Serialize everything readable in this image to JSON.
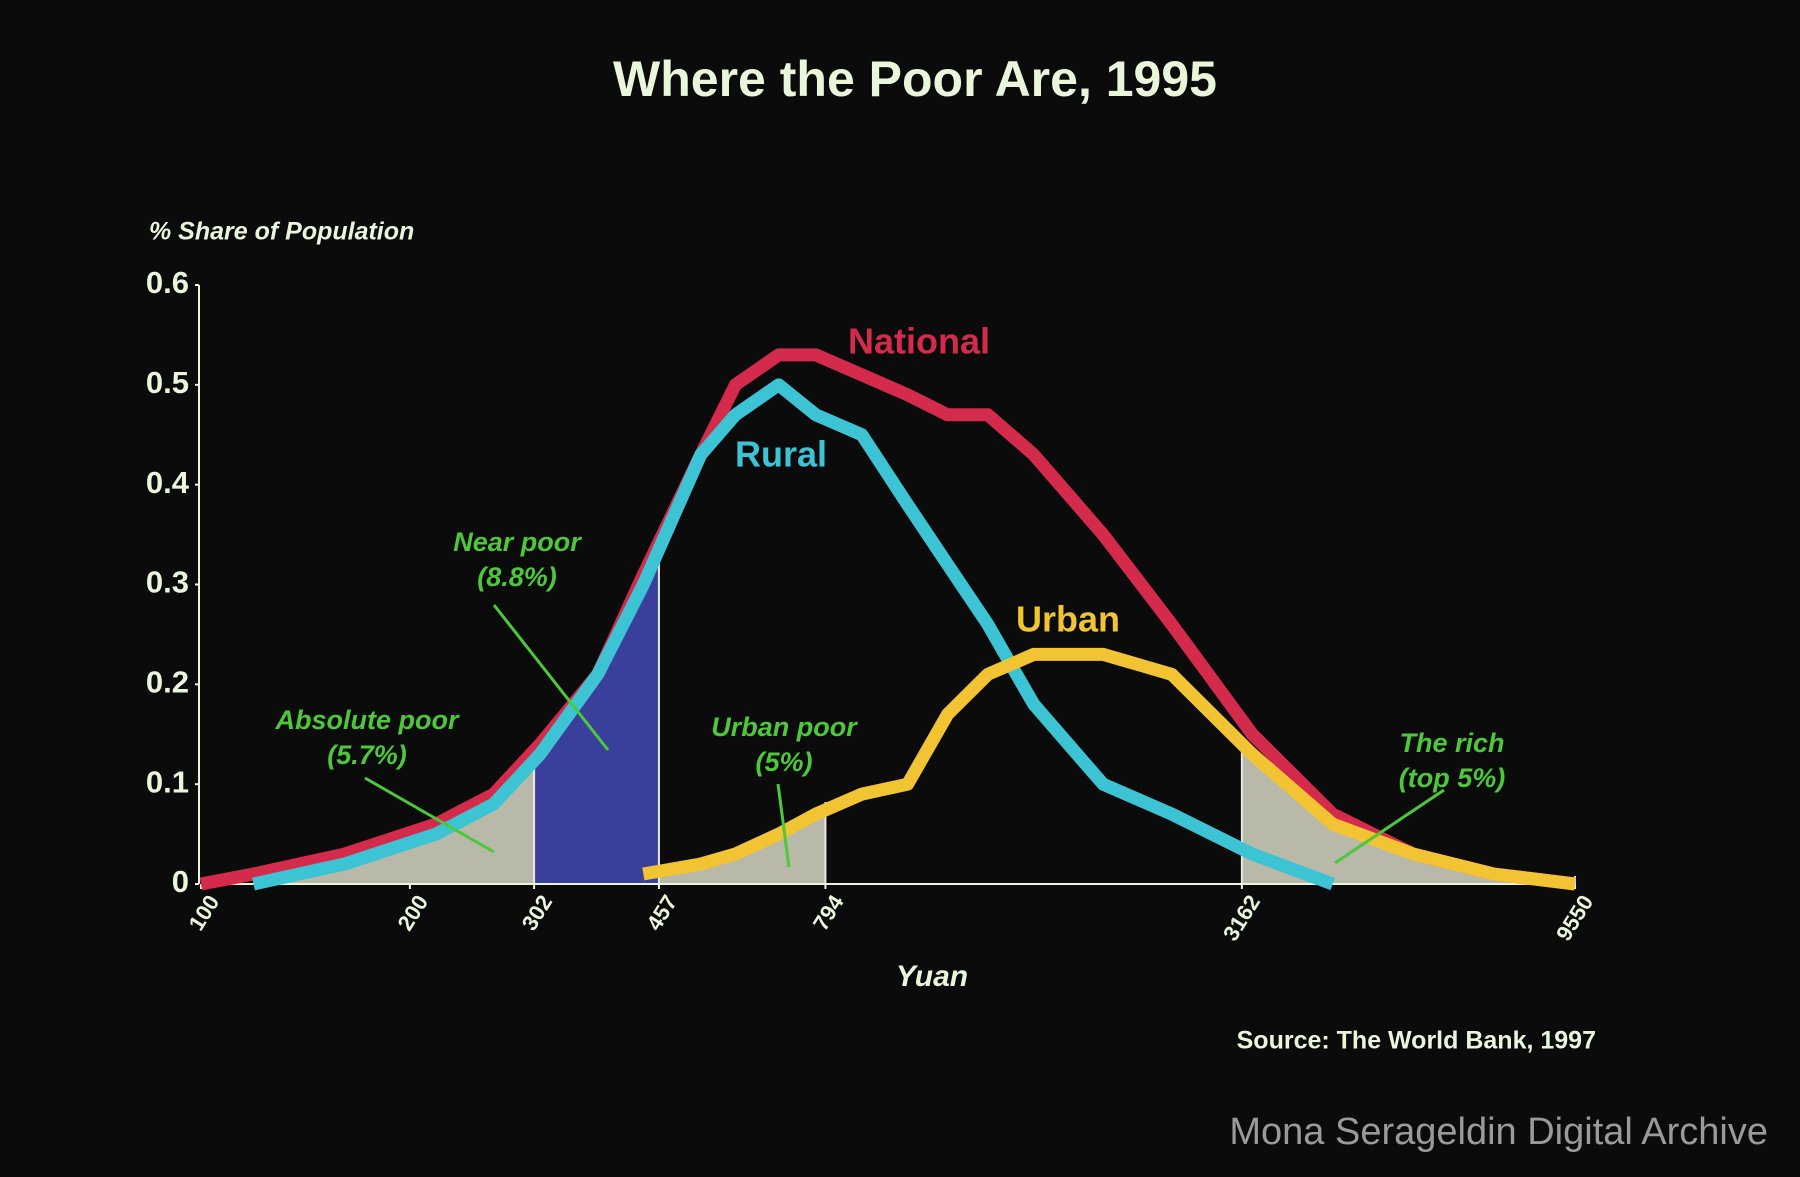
{
  "chart_data": {
    "type": "line",
    "title": "Where the Poor Are, 1995",
    "ylabel": "% Share of Population",
    "xlabel": "Yuan",
    "source": "Source: The World Bank, 1997",
    "watermark": "Mona Serageldin Digital Archive",
    "xscale": "log",
    "xlim": [
      100,
      9550
    ],
    "xticks": [
      100,
      200,
      302,
      457,
      794,
      3162,
      9550
    ],
    "ylim": [
      0,
      0.6
    ],
    "yticks": [
      0,
      0.1,
      0.2,
      0.3,
      0.4,
      0.5,
      0.6
    ],
    "x": [
      100,
      119,
      161,
      218,
      264,
      308,
      373,
      434,
      525,
      589,
      680,
      769,
      896,
      1043,
      1191,
      1361,
      1585,
      1995,
      2506,
      3273,
      4274,
      5585,
      7295,
      9550
    ],
    "series": [
      {
        "name": "National",
        "color": "#d42a4c",
        "values": [
          0.0,
          0.01,
          0.03,
          0.06,
          0.09,
          0.14,
          0.21,
          0.31,
          0.43,
          0.5,
          0.53,
          0.53,
          0.51,
          0.49,
          0.47,
          0.47,
          0.43,
          0.35,
          0.26,
          0.15,
          0.07,
          0.03,
          0.01,
          0.0
        ]
      },
      {
        "name": "Rural",
        "color": "#3cc4d4",
        "values": [
          null,
          0.0,
          0.02,
          0.05,
          0.08,
          0.13,
          0.21,
          0.3,
          0.43,
          0.47,
          0.5,
          0.47,
          0.45,
          0.38,
          0.32,
          0.26,
          0.18,
          0.1,
          0.07,
          0.03,
          0.0,
          null,
          null,
          null
        ]
      },
      {
        "name": "Urban",
        "color": "#f2c433",
        "values": [
          null,
          null,
          null,
          null,
          null,
          null,
          null,
          0.01,
          0.02,
          0.03,
          0.05,
          0.07,
          0.09,
          0.1,
          0.17,
          0.21,
          0.23,
          0.23,
          0.21,
          0.13,
          0.06,
          0.03,
          0.01,
          0.0
        ]
      }
    ],
    "annotations": [
      {
        "text": [
          "Absolute poor",
          "(5.7%)"
        ]
      },
      {
        "text": [
          "Near poor",
          "(8.8%)"
        ]
      },
      {
        "text": [
          "Urban poor",
          "(5%)"
        ]
      },
      {
        "text": [
          "The rich",
          "(top 5%)"
        ]
      }
    ],
    "annotation_color": "#4cc83a",
    "text_color": "#eaf6dc",
    "shade_colors": {
      "poor": "#b9b9aa",
      "near_poor": "#3b3f9c"
    }
  }
}
